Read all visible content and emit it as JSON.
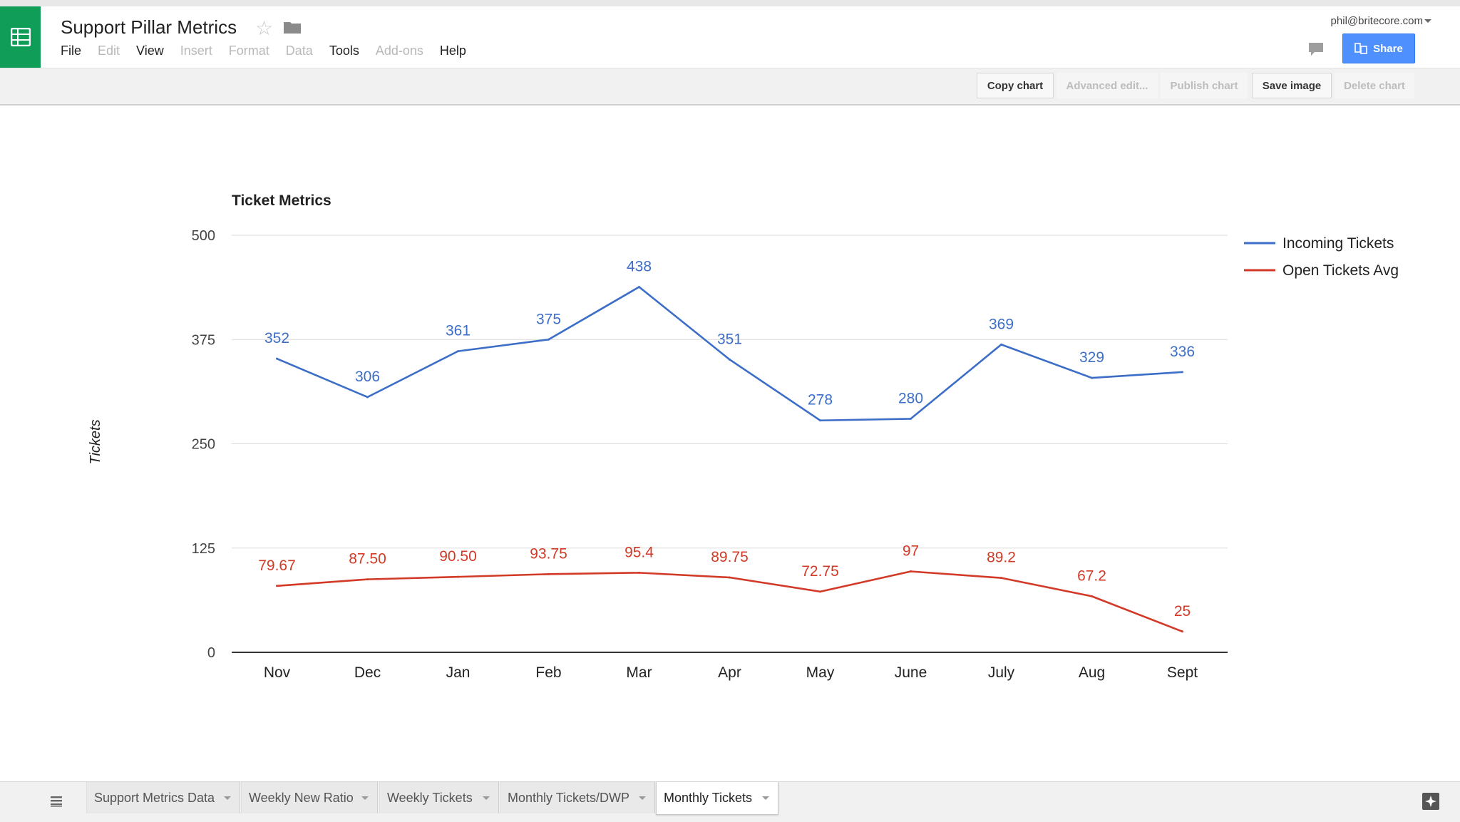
{
  "app": {
    "doc_title": "Support Pillar Metrics",
    "user_email": "phil@britecore.com",
    "share_label": "Share",
    "brand_color": "#0f9d58",
    "share_color": "#4d90fe"
  },
  "menu": [
    {
      "label": "File",
      "enabled": true
    },
    {
      "label": "Edit",
      "enabled": false
    },
    {
      "label": "View",
      "enabled": true
    },
    {
      "label": "Insert",
      "enabled": false
    },
    {
      "label": "Format",
      "enabled": false
    },
    {
      "label": "Data",
      "enabled": false
    },
    {
      "label": "Tools",
      "enabled": true
    },
    {
      "label": "Add-ons",
      "enabled": false
    },
    {
      "label": "Help",
      "enabled": true
    }
  ],
  "toolbar": [
    {
      "label": "Copy chart",
      "enabled": true
    },
    {
      "label": "Advanced edit...",
      "enabled": false
    },
    {
      "label": "Publish chart",
      "enabled": false
    },
    {
      "label": "Save image",
      "enabled": true
    },
    {
      "label": "Delete chart",
      "enabled": false
    }
  ],
  "sheet_tabs": [
    {
      "label": "Support Metrics Data",
      "active": false
    },
    {
      "label": "Weekly New Ratio",
      "active": false
    },
    {
      "label": "Weekly Tickets",
      "active": false
    },
    {
      "label": "Monthly Tickets/DWP",
      "active": false
    },
    {
      "label": "Monthly Tickets",
      "active": true
    }
  ],
  "chart_data": {
    "type": "line",
    "title": "Ticket Metrics",
    "xlabel": "",
    "ylabel": "Tickets",
    "categories": [
      "Nov",
      "Dec",
      "Jan",
      "Feb",
      "Mar",
      "Apr",
      "May",
      "June",
      "July",
      "Aug",
      "Sept"
    ],
    "ylim": [
      0,
      500
    ],
    "yticks": [
      0,
      125,
      250,
      375,
      500
    ],
    "grid": true,
    "legend": "right",
    "series": [
      {
        "name": "Incoming Tickets",
        "color": "#3c6ec8",
        "values": [
          352,
          306,
          361,
          375,
          438,
          351,
          278,
          280,
          369,
          329,
          336
        ],
        "labels": [
          "352",
          "306",
          "361",
          "375",
          "438",
          "351",
          "278",
          "280",
          "369",
          "329",
          "336"
        ]
      },
      {
        "name": "Open Tickets Avg",
        "color": "#d23a27",
        "values": [
          79.67,
          87.5,
          90.5,
          93.75,
          95.4,
          89.75,
          72.75,
          97,
          89.2,
          67.2,
          25
        ],
        "labels": [
          "79.67",
          "87.50",
          "90.50",
          "93.75",
          "95.4",
          "89.75",
          "72.75",
          "97",
          "89.2",
          "67.2",
          "25"
        ]
      }
    ]
  }
}
